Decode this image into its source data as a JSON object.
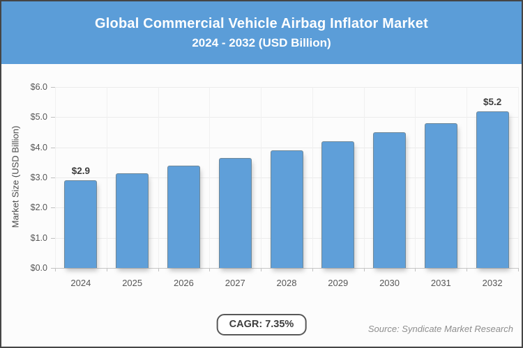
{
  "header": {
    "title_line1": "Global Commercial Vehicle Airbag Inflator Market",
    "title_line2": "2024 - 2032 (USD Billion)",
    "background_color": "#5b9dd8",
    "text_color": "#ffffff"
  },
  "chart_data": {
    "type": "bar",
    "title": "Global Commercial Vehicle Airbag Inflator Market 2024 - 2032 (USD Billion)",
    "categories": [
      "2024",
      "2025",
      "2026",
      "2027",
      "2028",
      "2029",
      "2030",
      "2031",
      "2032"
    ],
    "values": [
      2.9,
      3.15,
      3.4,
      3.65,
      3.9,
      4.2,
      4.5,
      4.8,
      5.2
    ],
    "bar_labels": [
      "$2.9",
      "",
      "",
      "",
      "",
      "",
      "",
      "",
      "$5.2"
    ],
    "xlabel": "",
    "ylabel": "Market Size (USD Billion)",
    "ylim": [
      0,
      6
    ],
    "ytick_step": 1,
    "ytick_labels_bottom_to_top": [
      "$0.0",
      "$1.0",
      "$2.0",
      "$3.0",
      "$4.0",
      "$5.0",
      "$6.0"
    ],
    "grid": true,
    "legend": "none",
    "bar_color": "#5f9fd9"
  },
  "footer": {
    "cagr_label": "CAGR: 7.35%",
    "source_label": "Source: Syndicate Market Research"
  }
}
